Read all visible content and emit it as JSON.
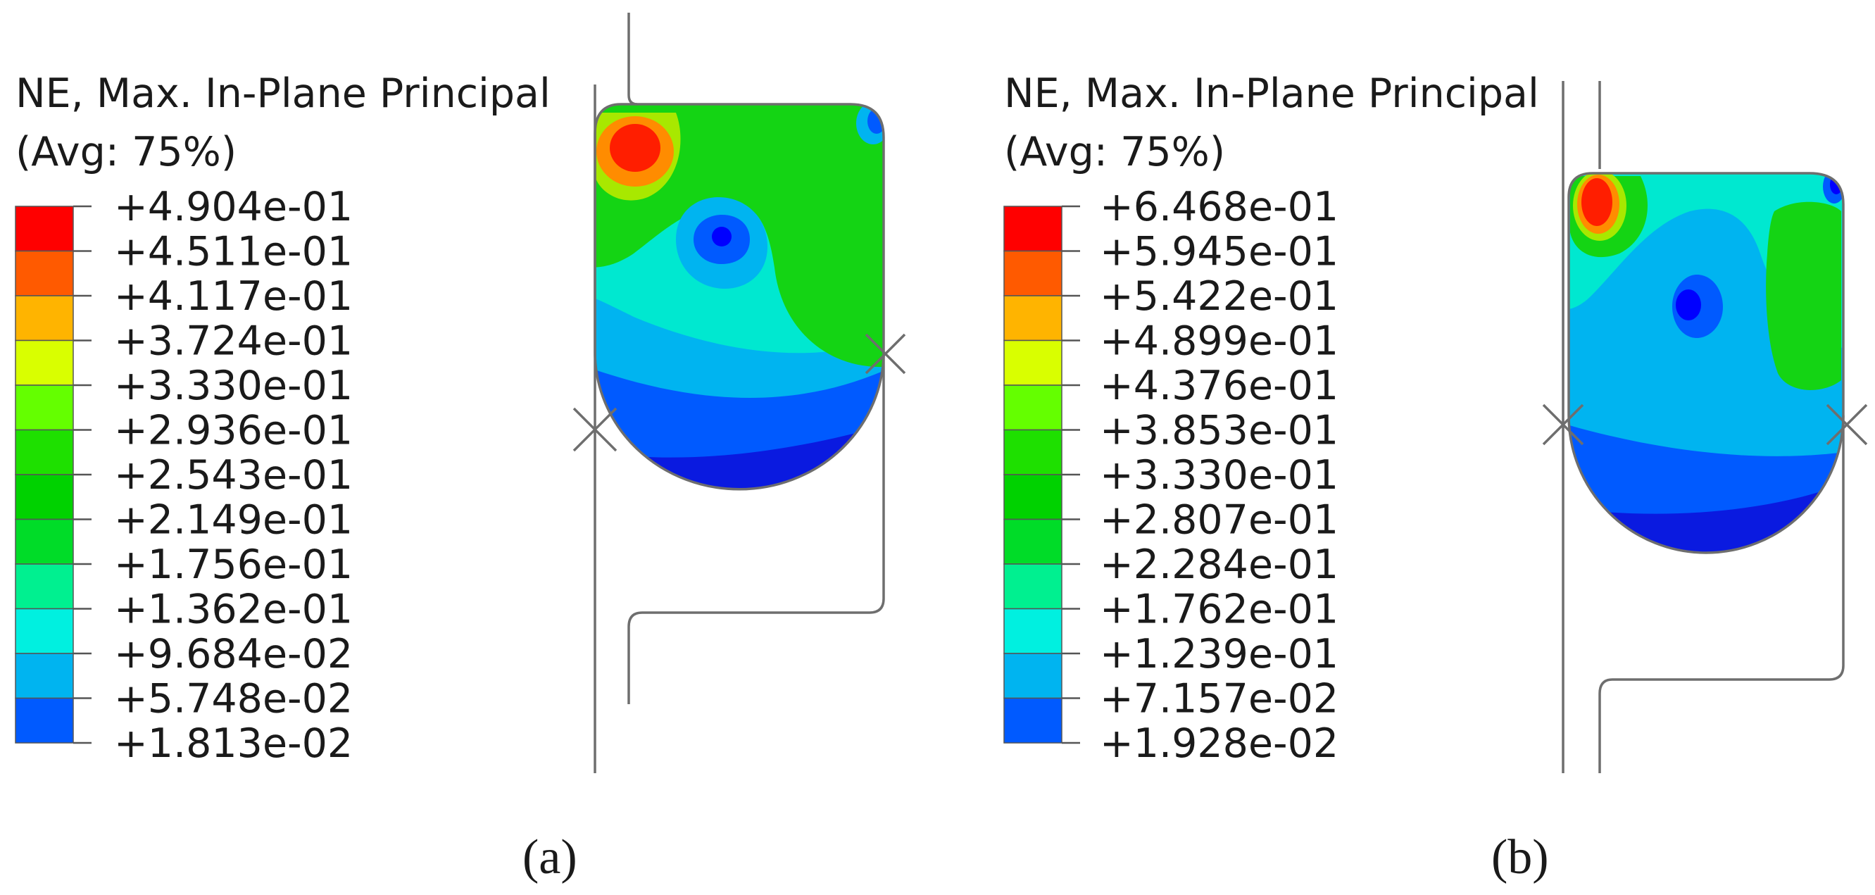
{
  "panels": [
    {
      "id": "a",
      "legend": {
        "title_line1": "NE, Max. In-Plane Principal",
        "title_line2": "(Avg: 75%)",
        "values": [
          "+4.904e-01",
          "+4.511e-01",
          "+4.117e-01",
          "+3.724e-01",
          "+3.330e-01",
          "+2.936e-01",
          "+2.543e-01",
          "+2.149e-01",
          "+1.756e-01",
          "+1.362e-01",
          "+9.684e-02",
          "+5.748e-02",
          "+1.813e-02"
        ]
      },
      "label": "(a)"
    },
    {
      "id": "b",
      "legend": {
        "title_line1": "NE, Max. In-Plane Principal",
        "title_line2": "(Avg: 75%)",
        "values": [
          "+6.468e-01",
          "+5.945e-01",
          "+5.422e-01",
          "+4.899e-01",
          "+4.376e-01",
          "+3.853e-01",
          "+3.330e-01",
          "+2.807e-01",
          "+2.284e-01",
          "+1.762e-01",
          "+1.239e-01",
          "+7.157e-02",
          "+1.928e-02"
        ]
      },
      "label": "(b)"
    }
  ],
  "colormap": [
    "#ff0000",
    "#ff5a00",
    "#ffb400",
    "#d9ff00",
    "#64ff00",
    "#1ee000",
    "#00d200",
    "#00dc28",
    "#00f090",
    "#00f0e0",
    "#00b4f0",
    "#005aff",
    "#0000ff"
  ],
  "contour_colors": {
    "outer_blue": "#005aff",
    "light_blue": "#00b4f0",
    "cyan": "#00e8d0",
    "green": "#14d414",
    "yellow_green": "#a8e800",
    "orange": "#ff8c00",
    "red": "#ff1e00",
    "dark_blue": "#0000ff"
  }
}
